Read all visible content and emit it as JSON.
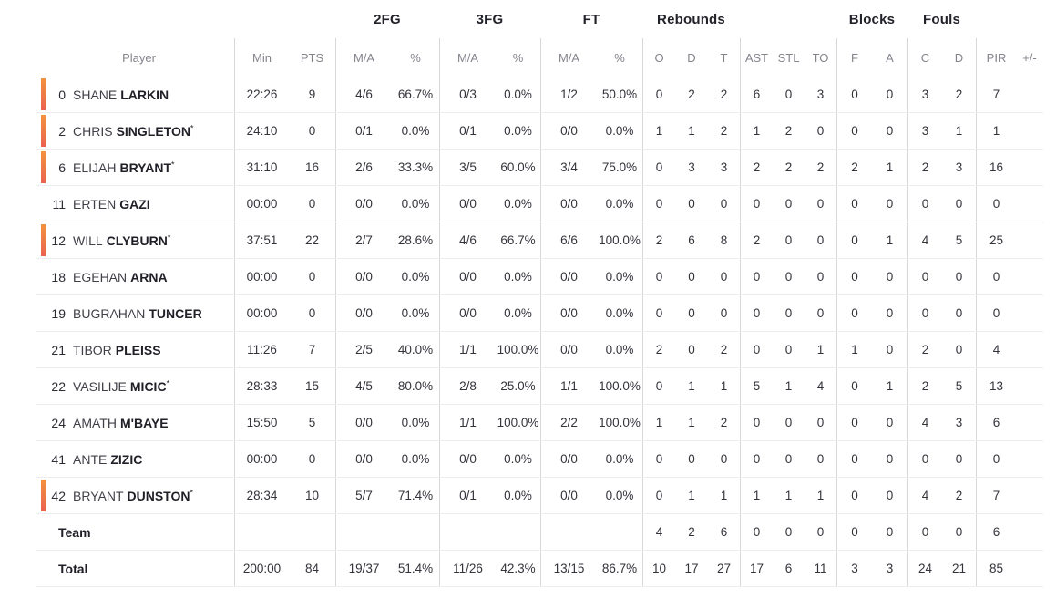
{
  "colors": {
    "accent_bar_top": "#f2933d",
    "accent_bar_bottom": "#eb6150",
    "group_line": "#d7d7db",
    "row_line": "#ededf0"
  },
  "header": {
    "groups": {
      "fg2": "2FG",
      "fg3": "3FG",
      "ft": "FT",
      "rebounds": "Rebounds",
      "blocks": "Blocks",
      "fouls": "Fouls"
    },
    "columns": {
      "player": "Player",
      "min": "Min",
      "pts": "PTS",
      "ma": "M/A",
      "pct": "%",
      "reb_o": "O",
      "reb_d": "D",
      "reb_t": "T",
      "ast": "AST",
      "stl": "STL",
      "to": "TO",
      "blk_f": "F",
      "blk_a": "A",
      "foul_c": "C",
      "foul_d": "D",
      "pir": "PIR",
      "plus_minus": "+/-"
    }
  },
  "players": [
    {
      "number": "0",
      "first": "SHANE",
      "last": "LARKIN",
      "starter_mark": "",
      "on_court": true,
      "min": "22:26",
      "pts": "9",
      "fg2_ma": "4/6",
      "fg2_pct": "66.7%",
      "fg3_ma": "0/3",
      "fg3_pct": "0.0%",
      "ft_ma": "1/2",
      "ft_pct": "50.0%",
      "reb_o": "0",
      "reb_d": "2",
      "reb_t": "2",
      "ast": "6",
      "stl": "0",
      "to": "3",
      "blk_f": "0",
      "blk_a": "0",
      "foul_c": "3",
      "foul_d": "2",
      "pir": "7",
      "plus_minus": ""
    },
    {
      "number": "2",
      "first": "CHRIS",
      "last": "SINGLETON",
      "starter_mark": "*",
      "on_court": true,
      "min": "24:10",
      "pts": "0",
      "fg2_ma": "0/1",
      "fg2_pct": "0.0%",
      "fg3_ma": "0/1",
      "fg3_pct": "0.0%",
      "ft_ma": "0/0",
      "ft_pct": "0.0%",
      "reb_o": "1",
      "reb_d": "1",
      "reb_t": "2",
      "ast": "1",
      "stl": "2",
      "to": "0",
      "blk_f": "0",
      "blk_a": "0",
      "foul_c": "3",
      "foul_d": "1",
      "pir": "1",
      "plus_minus": ""
    },
    {
      "number": "6",
      "first": "ELIJAH",
      "last": "BRYANT",
      "starter_mark": "*",
      "on_court": true,
      "min": "31:10",
      "pts": "16",
      "fg2_ma": "2/6",
      "fg2_pct": "33.3%",
      "fg3_ma": "3/5",
      "fg3_pct": "60.0%",
      "ft_ma": "3/4",
      "ft_pct": "75.0%",
      "reb_o": "0",
      "reb_d": "3",
      "reb_t": "3",
      "ast": "2",
      "stl": "2",
      "to": "2",
      "blk_f": "2",
      "blk_a": "1",
      "foul_c": "2",
      "foul_d": "3",
      "pir": "16",
      "plus_minus": ""
    },
    {
      "number": "11",
      "first": "ERTEN",
      "last": "GAZI",
      "starter_mark": "",
      "on_court": false,
      "min": "00:00",
      "pts": "0",
      "fg2_ma": "0/0",
      "fg2_pct": "0.0%",
      "fg3_ma": "0/0",
      "fg3_pct": "0.0%",
      "ft_ma": "0/0",
      "ft_pct": "0.0%",
      "reb_o": "0",
      "reb_d": "0",
      "reb_t": "0",
      "ast": "0",
      "stl": "0",
      "to": "0",
      "blk_f": "0",
      "blk_a": "0",
      "foul_c": "0",
      "foul_d": "0",
      "pir": "0",
      "plus_minus": ""
    },
    {
      "number": "12",
      "first": "WILL",
      "last": "CLYBURN",
      "starter_mark": "*",
      "on_court": true,
      "min": "37:51",
      "pts": "22",
      "fg2_ma": "2/7",
      "fg2_pct": "28.6%",
      "fg3_ma": "4/6",
      "fg3_pct": "66.7%",
      "ft_ma": "6/6",
      "ft_pct": "100.0%",
      "reb_o": "2",
      "reb_d": "6",
      "reb_t": "8",
      "ast": "2",
      "stl": "0",
      "to": "0",
      "blk_f": "0",
      "blk_a": "1",
      "foul_c": "4",
      "foul_d": "5",
      "pir": "25",
      "plus_minus": ""
    },
    {
      "number": "18",
      "first": "EGEHAN",
      "last": "ARNA",
      "starter_mark": "",
      "on_court": false,
      "min": "00:00",
      "pts": "0",
      "fg2_ma": "0/0",
      "fg2_pct": "0.0%",
      "fg3_ma": "0/0",
      "fg3_pct": "0.0%",
      "ft_ma": "0/0",
      "ft_pct": "0.0%",
      "reb_o": "0",
      "reb_d": "0",
      "reb_t": "0",
      "ast": "0",
      "stl": "0",
      "to": "0",
      "blk_f": "0",
      "blk_a": "0",
      "foul_c": "0",
      "foul_d": "0",
      "pir": "0",
      "plus_minus": ""
    },
    {
      "number": "19",
      "first": "BUGRAHAN",
      "last": "TUNCER",
      "starter_mark": "",
      "on_court": false,
      "min": "00:00",
      "pts": "0",
      "fg2_ma": "0/0",
      "fg2_pct": "0.0%",
      "fg3_ma": "0/0",
      "fg3_pct": "0.0%",
      "ft_ma": "0/0",
      "ft_pct": "0.0%",
      "reb_o": "0",
      "reb_d": "0",
      "reb_t": "0",
      "ast": "0",
      "stl": "0",
      "to": "0",
      "blk_f": "0",
      "blk_a": "0",
      "foul_c": "0",
      "foul_d": "0",
      "pir": "0",
      "plus_minus": ""
    },
    {
      "number": "21",
      "first": "TIBOR",
      "last": "PLEISS",
      "starter_mark": "",
      "on_court": false,
      "min": "11:26",
      "pts": "7",
      "fg2_ma": "2/5",
      "fg2_pct": "40.0%",
      "fg3_ma": "1/1",
      "fg3_pct": "100.0%",
      "ft_ma": "0/0",
      "ft_pct": "0.0%",
      "reb_o": "2",
      "reb_d": "0",
      "reb_t": "2",
      "ast": "0",
      "stl": "0",
      "to": "1",
      "blk_f": "1",
      "blk_a": "0",
      "foul_c": "2",
      "foul_d": "0",
      "pir": "4",
      "plus_minus": ""
    },
    {
      "number": "22",
      "first": "VASILIJE",
      "last": "MICIC",
      "starter_mark": "*",
      "on_court": false,
      "min": "28:33",
      "pts": "15",
      "fg2_ma": "4/5",
      "fg2_pct": "80.0%",
      "fg3_ma": "2/8",
      "fg3_pct": "25.0%",
      "ft_ma": "1/1",
      "ft_pct": "100.0%",
      "reb_o": "0",
      "reb_d": "1",
      "reb_t": "1",
      "ast": "5",
      "stl": "1",
      "to": "4",
      "blk_f": "0",
      "blk_a": "1",
      "foul_c": "2",
      "foul_d": "5",
      "pir": "13",
      "plus_minus": ""
    },
    {
      "number": "24",
      "first": "AMATH",
      "last": "M'BAYE",
      "starter_mark": "",
      "on_court": false,
      "min": "15:50",
      "pts": "5",
      "fg2_ma": "0/0",
      "fg2_pct": "0.0%",
      "fg3_ma": "1/1",
      "fg3_pct": "100.0%",
      "ft_ma": "2/2",
      "ft_pct": "100.0%",
      "reb_o": "1",
      "reb_d": "1",
      "reb_t": "2",
      "ast": "0",
      "stl": "0",
      "to": "0",
      "blk_f": "0",
      "blk_a": "0",
      "foul_c": "4",
      "foul_d": "3",
      "pir": "6",
      "plus_minus": ""
    },
    {
      "number": "41",
      "first": "ANTE",
      "last": "ZIZIC",
      "starter_mark": "",
      "on_court": false,
      "min": "00:00",
      "pts": "0",
      "fg2_ma": "0/0",
      "fg2_pct": "0.0%",
      "fg3_ma": "0/0",
      "fg3_pct": "0.0%",
      "ft_ma": "0/0",
      "ft_pct": "0.0%",
      "reb_o": "0",
      "reb_d": "0",
      "reb_t": "0",
      "ast": "0",
      "stl": "0",
      "to": "0",
      "blk_f": "0",
      "blk_a": "0",
      "foul_c": "0",
      "foul_d": "0",
      "pir": "0",
      "plus_minus": ""
    },
    {
      "number": "42",
      "first": "BRYANT",
      "last": "DUNSTON",
      "starter_mark": "*",
      "on_court": true,
      "min": "28:34",
      "pts": "10",
      "fg2_ma": "5/7",
      "fg2_pct": "71.4%",
      "fg3_ma": "0/1",
      "fg3_pct": "0.0%",
      "ft_ma": "0/0",
      "ft_pct": "0.0%",
      "reb_o": "0",
      "reb_d": "1",
      "reb_t": "1",
      "ast": "1",
      "stl": "1",
      "to": "1",
      "blk_f": "0",
      "blk_a": "0",
      "foul_c": "4",
      "foul_d": "2",
      "pir": "7",
      "plus_minus": ""
    }
  ],
  "team_row": {
    "label": "Team",
    "min": "",
    "pts": "",
    "fg2_ma": "",
    "fg2_pct": "",
    "fg3_ma": "",
    "fg3_pct": "",
    "ft_ma": "",
    "ft_pct": "",
    "reb_o": "4",
    "reb_d": "2",
    "reb_t": "6",
    "ast": "0",
    "stl": "0",
    "to": "0",
    "blk_f": "0",
    "blk_a": "0",
    "foul_c": "0",
    "foul_d": "0",
    "pir": "6",
    "plus_minus": ""
  },
  "total_row": {
    "label": "Total",
    "min": "200:00",
    "pts": "84",
    "fg2_ma": "19/37",
    "fg2_pct": "51.4%",
    "fg3_ma": "11/26",
    "fg3_pct": "42.3%",
    "ft_ma": "13/15",
    "ft_pct": "86.7%",
    "reb_o": "10",
    "reb_d": "17",
    "reb_t": "27",
    "ast": "17",
    "stl": "6",
    "to": "11",
    "blk_f": "3",
    "blk_a": "3",
    "foul_c": "24",
    "foul_d": "21",
    "pir": "85",
    "plus_minus": ""
  }
}
